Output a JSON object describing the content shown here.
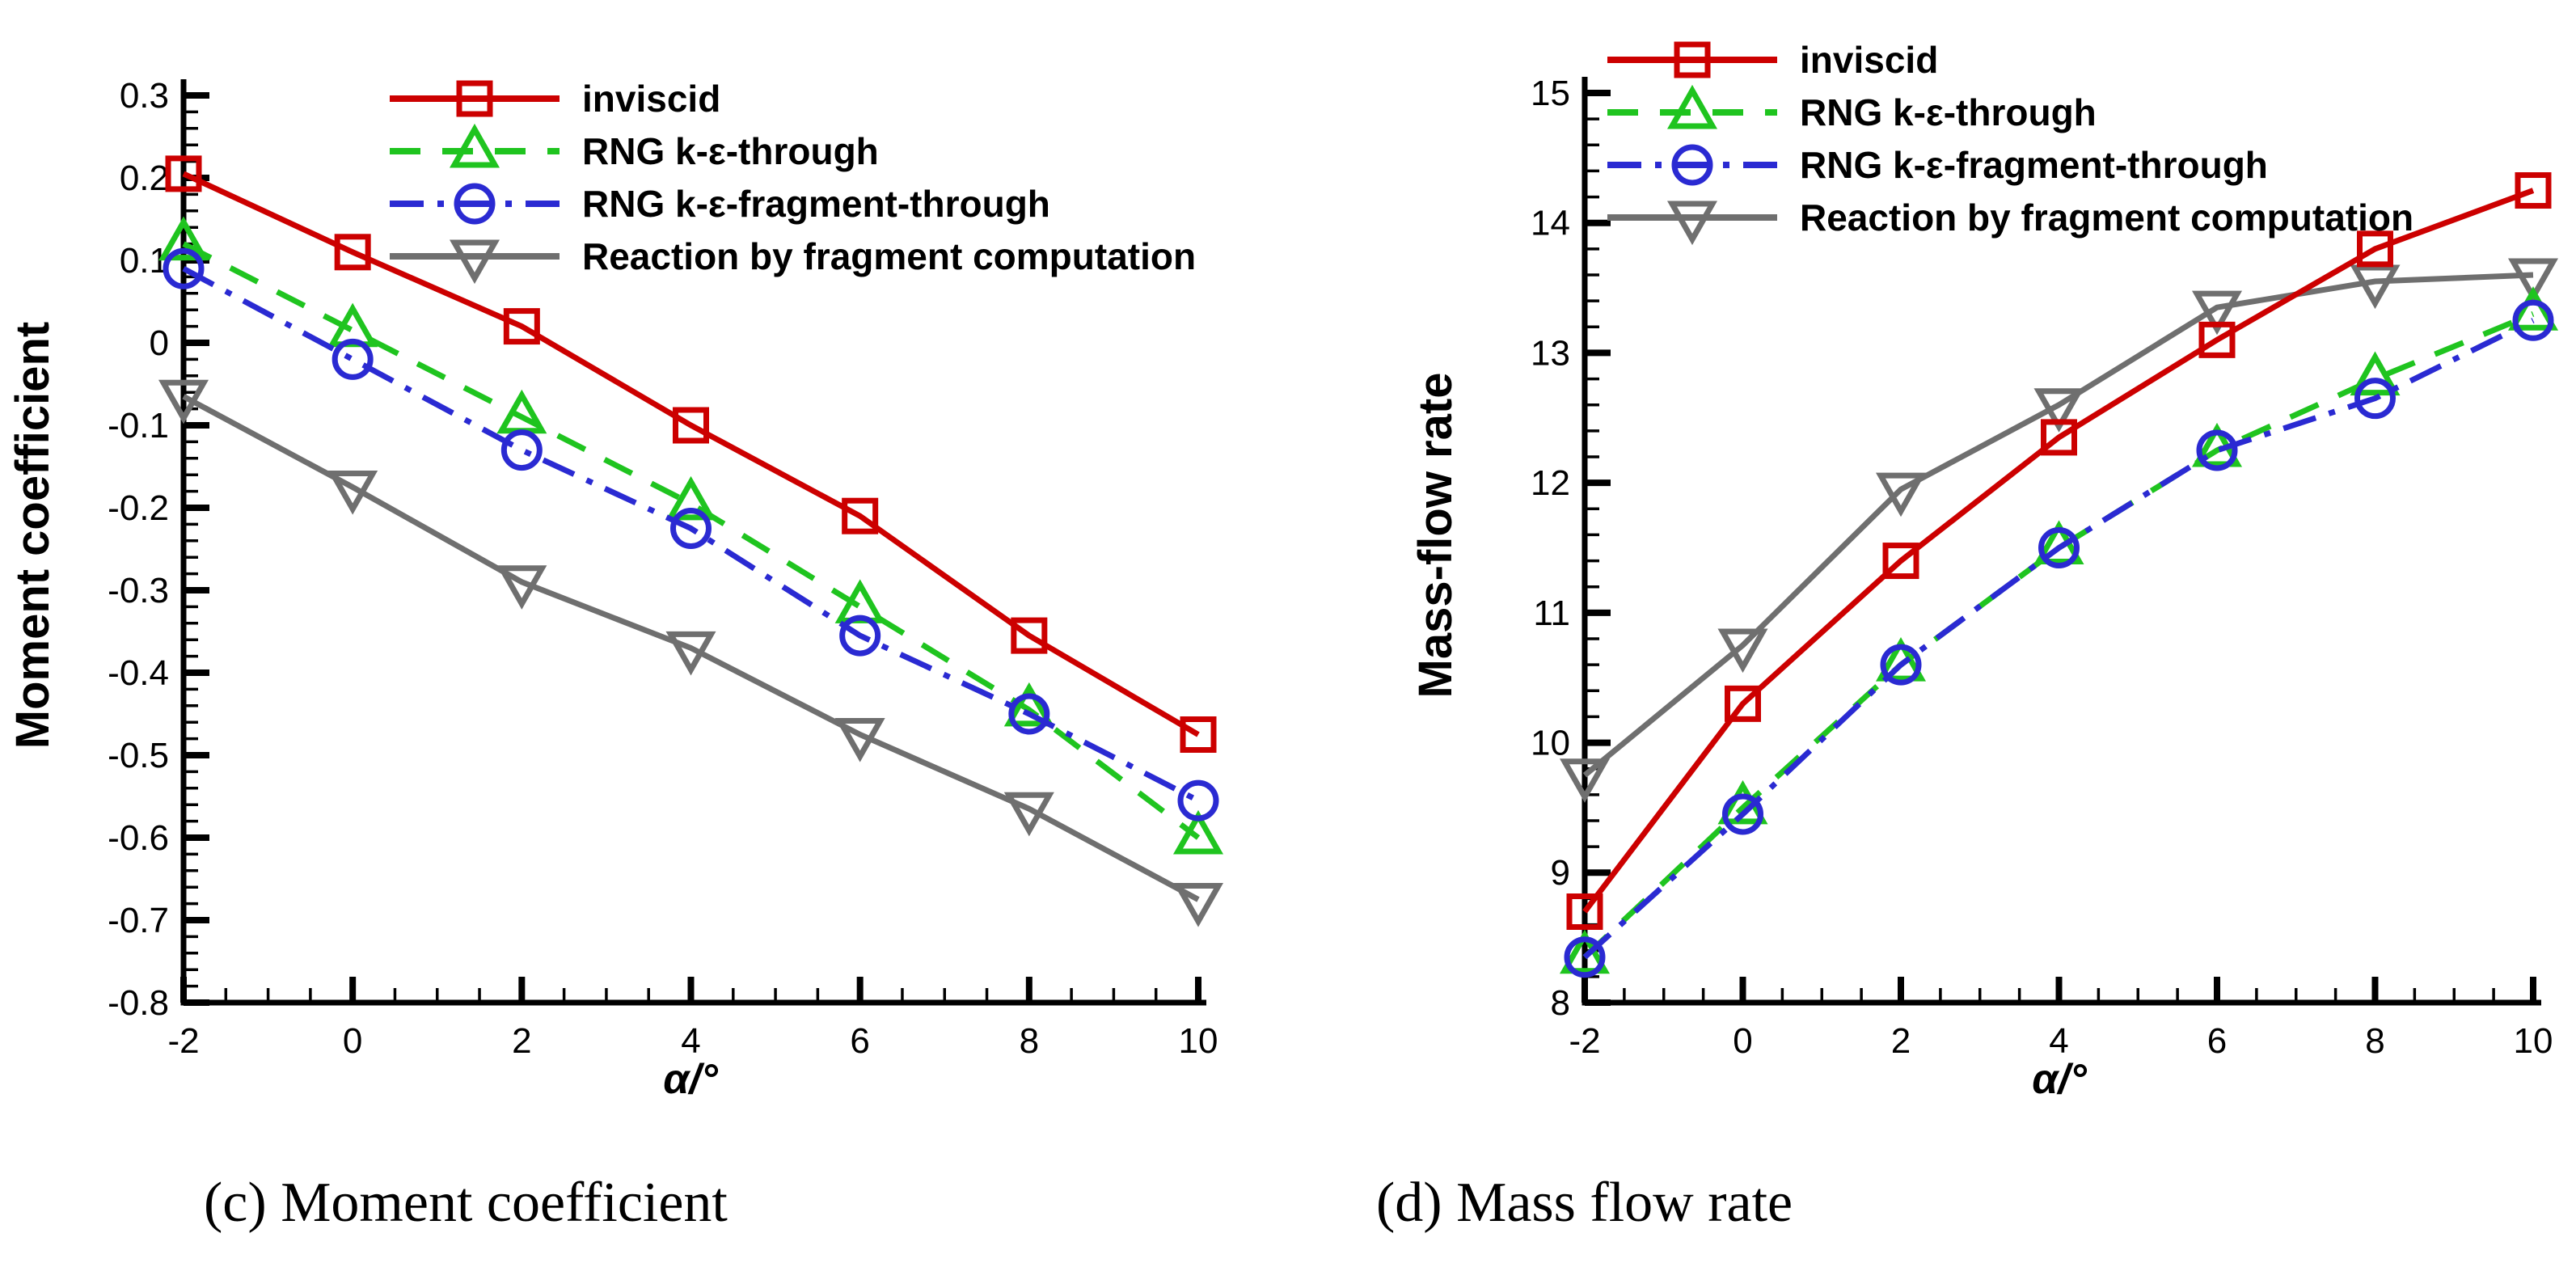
{
  "figure": {
    "background": "#ffffff",
    "caption_left": "(c) Moment coefficient",
    "caption_right": "(d) Mass flow rate"
  },
  "colors": {
    "axis": "#000000",
    "inviscid": "#cc0000",
    "rng_through": "#1fc41f",
    "rng_fragment_through": "#2a2ad2",
    "reaction_fragment": "#6f6f6f"
  },
  "chart_data": [
    {
      "type": "line",
      "title": "",
      "xlabel": "α/°",
      "ylabel": "Moment coefficient",
      "xlim": [
        -2,
        10
      ],
      "ylim": [
        -0.8,
        0.3
      ],
      "x_ticks": [
        -2,
        0,
        2,
        4,
        6,
        8,
        10
      ],
      "y_ticks": [
        -0.8,
        -0.7,
        -0.6,
        -0.5,
        -0.4,
        -0.3,
        -0.2,
        -0.1,
        0,
        0.1,
        0.2,
        0.3
      ],
      "x_minor_step": 0.5,
      "y_minor_step": 0.02,
      "grid": false,
      "legend_position": "top-left-inside",
      "x": [
        -2,
        0,
        2,
        4,
        6,
        8,
        10
      ],
      "series": [
        {
          "name": "inviscid",
          "color": "#cc0000",
          "dash": "solid",
          "marker": "square",
          "values": [
            0.205,
            0.11,
            0.02,
            -0.1,
            -0.21,
            -0.355,
            -0.475
          ]
        },
        {
          "name": "RNG k-ε-through",
          "color": "#1fc41f",
          "dash": "dashed",
          "marker": "triangle-up",
          "values": [
            0.12,
            0.015,
            -0.09,
            -0.195,
            -0.32,
            -0.445,
            -0.6
          ]
        },
        {
          "name": "RNG k-ε-fragment-through",
          "color": "#2a2ad2",
          "dash": "dashdot",
          "marker": "circle",
          "values": [
            0.09,
            -0.02,
            -0.13,
            -0.225,
            -0.355,
            -0.45,
            -0.555
          ]
        },
        {
          "name": "Reaction by fragment computation",
          "color": "#6f6f6f",
          "dash": "solid",
          "marker": "triangle-down",
          "values": [
            -0.065,
            -0.175,
            -0.29,
            -0.37,
            -0.475,
            -0.565,
            -0.675
          ]
        }
      ]
    },
    {
      "type": "line",
      "title": "",
      "xlabel": "α/°",
      "ylabel": "Mass-flow rate",
      "xlim": [
        -2,
        10
      ],
      "ylim": [
        8,
        15
      ],
      "x_ticks": [
        -2,
        0,
        2,
        4,
        6,
        8,
        10
      ],
      "y_ticks": [
        8,
        9,
        10,
        11,
        12,
        13,
        14,
        15
      ],
      "x_minor_step": 0.5,
      "y_minor_step": 0.2,
      "grid": false,
      "legend_position": "top-left-inside",
      "x": [
        -2,
        0,
        2,
        4,
        6,
        8,
        10
      ],
      "series": [
        {
          "name": "inviscid",
          "color": "#cc0000",
          "dash": "solid",
          "marker": "square",
          "values": [
            8.7,
            10.3,
            11.4,
            12.35,
            13.1,
            13.8,
            14.25
          ]
        },
        {
          "name": "RNG k-ε-through",
          "color": "#1fc41f",
          "dash": "dashed",
          "marker": "triangle-up",
          "values": [
            8.35,
            9.5,
            10.6,
            11.5,
            12.25,
            12.8,
            13.3
          ]
        },
        {
          "name": "RNG k-ε-fragment-through",
          "color": "#2a2ad2",
          "dash": "dashdot",
          "marker": "circle",
          "values": [
            8.35,
            9.45,
            10.6,
            11.5,
            12.25,
            12.65,
            13.25
          ]
        },
        {
          "name": "Reaction by fragment computation",
          "color": "#6f6f6f",
          "dash": "solid",
          "marker": "triangle-down",
          "values": [
            9.75,
            10.75,
            11.95,
            12.6,
            13.35,
            13.55,
            13.6
          ]
        }
      ]
    }
  ]
}
